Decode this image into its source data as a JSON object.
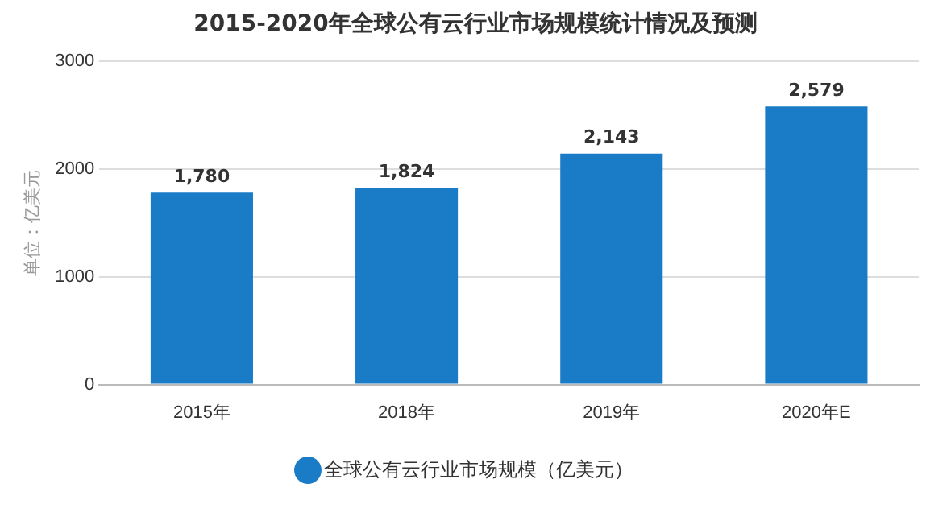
{
  "chart_data": {
    "type": "bar",
    "title": "2015-2020年全球公有云行业市场规模统计情况及预测",
    "ylabel": "单位：亿美元",
    "categories": [
      "2015年",
      "2018年",
      "2019年",
      "2020年E"
    ],
    "series": [
      {
        "name": "全球公有云行业市场规模（亿美元）",
        "color": "#1a7bc6",
        "values": [
          1780,
          1824,
          2143,
          2579
        ]
      }
    ],
    "value_labels": [
      "1,780",
      "1,824",
      "2,143",
      "2,579"
    ],
    "ylim": [
      0,
      3000
    ],
    "yticks": [
      0,
      1000,
      2000,
      3000
    ],
    "grid": "y",
    "legend": "bottom"
  }
}
